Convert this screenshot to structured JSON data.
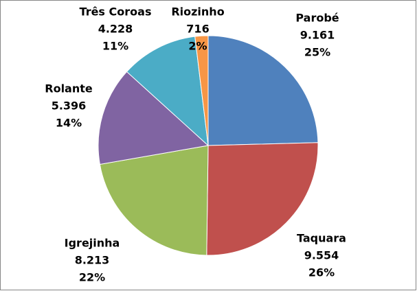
{
  "chart_data": {
    "type": "pie",
    "categories": [
      "Parobé",
      "Taquara",
      "Igrejinha",
      "Rolante",
      "Três Coroas",
      "Riozinho"
    ],
    "values": [
      9161,
      9554,
      8213,
      5396,
      4228,
      716
    ],
    "value_labels": [
      "9.161",
      "9.554",
      "8.213",
      "5.396",
      "4.228",
      "716"
    ],
    "percents": [
      25,
      26,
      22,
      14,
      11,
      2
    ],
    "percent_labels": [
      "25%",
      "26%",
      "22%",
      "14%",
      "11%",
      "2%"
    ],
    "colors": [
      "#4F81BD",
      "#C0504D",
      "#9BBB59",
      "#8064A2",
      "#4BACC6",
      "#F79646"
    ]
  }
}
